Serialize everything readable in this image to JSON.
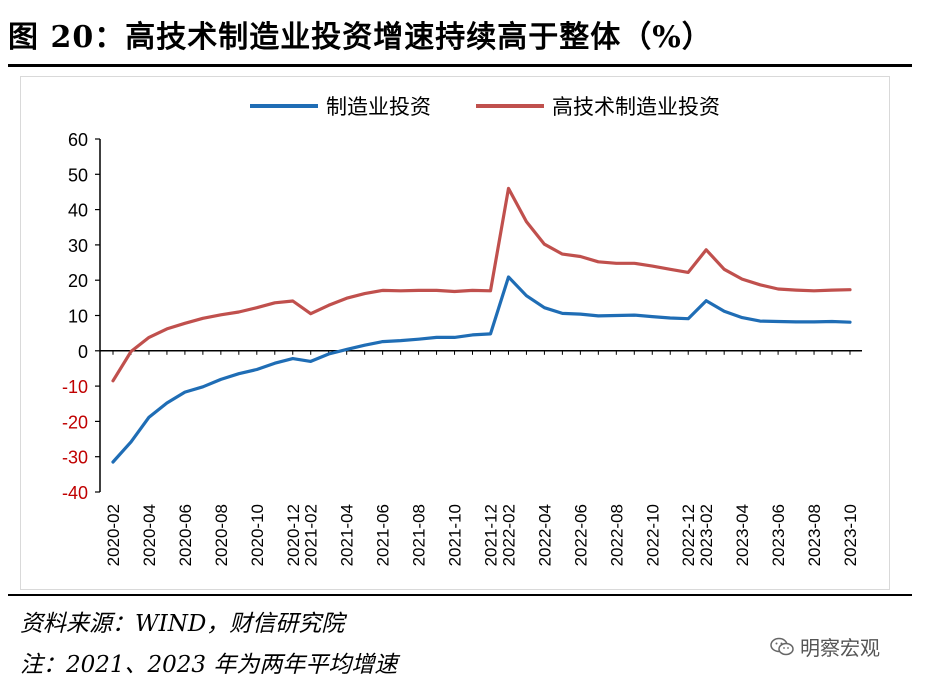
{
  "header": {
    "title": "图 20：高技术制造业投资增速持续高于整体（%）"
  },
  "footer": {
    "source": "资料来源：WIND，财信研究院",
    "note": "注：2021、2023 年为两年平均增速"
  },
  "watermark": {
    "text": "明察宏观",
    "icon": "wechat-icon"
  },
  "colors": {
    "series_1": "#1f6db5",
    "series_2": "#c0504d",
    "negative_tick": "#c00000",
    "axis": "#000000"
  },
  "chart_data": {
    "type": "line",
    "title": "",
    "xlabel": "",
    "ylabel": "",
    "ylim": [
      -40,
      60
    ],
    "yticks": [
      -40,
      -30,
      -20,
      -10,
      0,
      10,
      20,
      30,
      40,
      50,
      60
    ],
    "grid": false,
    "legend_position": "top",
    "x": [
      "2020-02",
      "2020-03",
      "2020-04",
      "2020-05",
      "2020-06",
      "2020-07",
      "2020-08",
      "2020-09",
      "2020-10",
      "2020-11",
      "2020-12",
      "2021-02",
      "2021-03",
      "2021-04",
      "2021-05",
      "2021-06",
      "2021-07",
      "2021-08",
      "2021-09",
      "2021-10",
      "2021-11",
      "2021-12",
      "2022-02",
      "2022-03",
      "2022-04",
      "2022-05",
      "2022-06",
      "2022-07",
      "2022-08",
      "2022-09",
      "2022-10",
      "2022-11",
      "2022-12",
      "2023-02",
      "2023-03",
      "2023-04",
      "2023-05",
      "2023-06",
      "2023-07",
      "2023-08",
      "2023-09",
      "2023-10"
    ],
    "xtick_labels": [
      "2020-02",
      "2020-04",
      "2020-06",
      "2020-08",
      "2020-10",
      "2020-12",
      "2021-02",
      "2021-04",
      "2021-06",
      "2021-08",
      "2021-10",
      "2021-12",
      "2022-02",
      "2022-04",
      "2022-06",
      "2022-08",
      "2022-10",
      "2022-12",
      "2023-02",
      "2023-04",
      "2023-06",
      "2023-08",
      "2023-10"
    ],
    "series": [
      {
        "name": "制造业投资",
        "values": [
          -31.5,
          -25.8,
          -18.8,
          -14.8,
          -11.7,
          -10.2,
          -8.1,
          -6.5,
          -5.3,
          -3.5,
          -2.2,
          -3.0,
          -0.9,
          0.4,
          1.6,
          2.6,
          2.9,
          3.3,
          3.8,
          3.8,
          4.5,
          4.8,
          20.9,
          15.6,
          12.2,
          10.6,
          10.4,
          9.9,
          10.0,
          10.1,
          9.7,
          9.3,
          9.1,
          14.2,
          11.2,
          9.4,
          8.4,
          8.3,
          8.2,
          8.2,
          8.3,
          8.1
        ]
      },
      {
        "name": "高技术制造业投资",
        "values": [
          -8.5,
          -0.2,
          3.8,
          6.2,
          7.8,
          9.2,
          10.2,
          11.0,
          12.2,
          13.6,
          14.1,
          10.5,
          12.9,
          14.9,
          16.2,
          17.1,
          17.0,
          17.1,
          17.1,
          16.8,
          17.1,
          17.0,
          46.0,
          36.6,
          30.2,
          27.4,
          26.7,
          25.2,
          24.8,
          24.8,
          24.0,
          23.1,
          22.2,
          28.6,
          23.1,
          20.3,
          18.7,
          17.5,
          17.2,
          17.0,
          17.2,
          17.3
        ]
      }
    ]
  }
}
